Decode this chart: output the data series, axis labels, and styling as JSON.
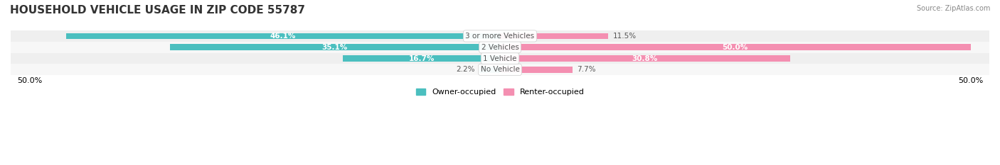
{
  "title": "HOUSEHOLD VEHICLE USAGE IN ZIP CODE 55787",
  "source": "Source: ZipAtlas.com",
  "categories": [
    "No Vehicle",
    "1 Vehicle",
    "2 Vehicles",
    "3 or more Vehicles"
  ],
  "owner_values": [
    2.2,
    16.7,
    35.1,
    46.1
  ],
  "renter_values": [
    7.7,
    30.8,
    50.0,
    11.5
  ],
  "owner_color": "#4BBFBF",
  "renter_color": "#F48FB1",
  "owner_label": "Owner-occupied",
  "renter_label": "Renter-occupied",
  "bar_bg_color": "#F0F0F0",
  "x_min": -50.0,
  "x_max": 50.0,
  "x_ticks": [
    -50.0,
    50.0
  ],
  "x_tick_labels": [
    "50.0%",
    "50.0%"
  ],
  "title_fontsize": 11,
  "label_fontsize": 8.5,
  "bar_height": 0.55,
  "row_bg_colors": [
    "#FAFAFA",
    "#F5F5F5"
  ]
}
